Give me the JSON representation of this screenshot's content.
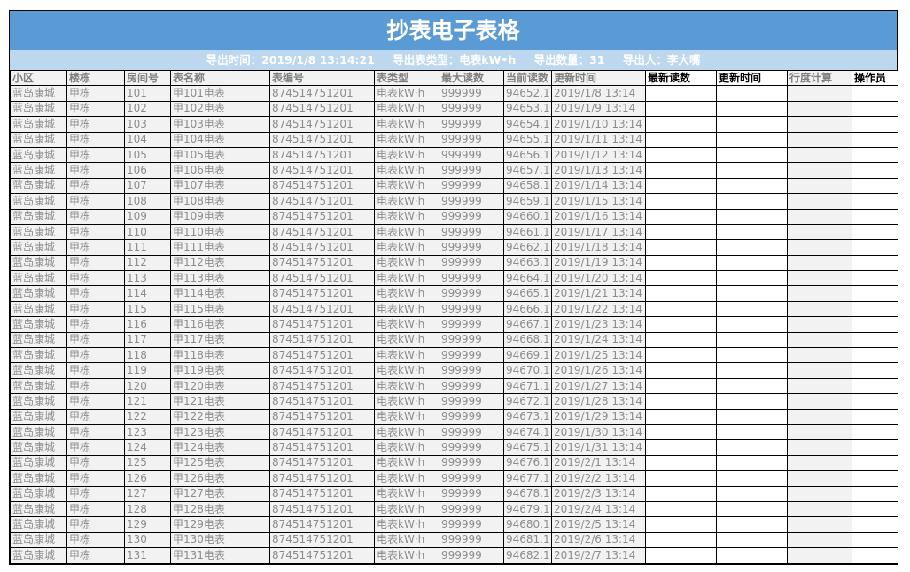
{
  "title": "抄表电子表格",
  "export_info": {
    "time": "导出时间：2019/1/8 13:14:21",
    "type": "导出表类型：电表kW•h",
    "count": "导出数量：31",
    "person": "导出人：李大嘴"
  },
  "columns": [
    "小区",
    "楼栋",
    "房间号",
    "表名称",
    "表编号",
    "表类型",
    "最大读数",
    "当前读数",
    "更新时间",
    "最新读数",
    "更新时间",
    "行度计算",
    "操作员"
  ],
  "rows": [
    [
      "蓝岛康城",
      "甲栋",
      "101",
      "甲101电表",
      "874514751201",
      "电表kW·h",
      "999999",
      "94652.1",
      "2019/1/8 13:14"
    ],
    [
      "蓝岛康城",
      "甲栋",
      "102",
      "甲102电表",
      "874514751201",
      "电表kW·h",
      "999999",
      "94653.1",
      "2019/1/9 13:14"
    ],
    [
      "蓝岛康城",
      "甲栋",
      "103",
      "甲103电表",
      "874514751201",
      "电表kW·h",
      "999999",
      "94654.1",
      "2019/1/10 13:14"
    ],
    [
      "蓝岛康城",
      "甲栋",
      "104",
      "甲104电表",
      "874514751201",
      "电表kW·h",
      "999999",
      "94655.1",
      "2019/1/11 13:14"
    ],
    [
      "蓝岛康城",
      "甲栋",
      "105",
      "甲105电表",
      "874514751201",
      "电表kW·h",
      "999999",
      "94656.1",
      "2019/1/12 13:14"
    ],
    [
      "蓝岛康城",
      "甲栋",
      "106",
      "甲106电表",
      "874514751201",
      "电表kW·h",
      "999999",
      "94657.1",
      "2019/1/13 13:14"
    ],
    [
      "蓝岛康城",
      "甲栋",
      "107",
      "甲107电表",
      "874514751201",
      "电表kW·h",
      "999999",
      "94658.1",
      "2019/1/14 13:14"
    ],
    [
      "蓝岛康城",
      "甲栋",
      "108",
      "甲108电表",
      "874514751201",
      "电表kW·h",
      "999999",
      "94659.1",
      "2019/1/15 13:14"
    ],
    [
      "蓝岛康城",
      "甲栋",
      "109",
      "甲109电表",
      "874514751201",
      "电表kW·h",
      "999999",
      "94660.1",
      "2019/1/16 13:14"
    ],
    [
      "蓝岛康城",
      "甲栋",
      "110",
      "甲110电表",
      "874514751201",
      "电表kW·h",
      "999999",
      "94661.1",
      "2019/1/17 13:14"
    ],
    [
      "蓝岛康城",
      "甲栋",
      "111",
      "甲111电表",
      "874514751201",
      "电表kW·h",
      "999999",
      "94662.1",
      "2019/1/18 13:14"
    ],
    [
      "蓝岛康城",
      "甲栋",
      "112",
      "甲112电表",
      "874514751201",
      "电表kW·h",
      "999999",
      "94663.1",
      "2019/1/19 13:14"
    ],
    [
      "蓝岛康城",
      "甲栋",
      "113",
      "甲113电表",
      "874514751201",
      "电表kW·h",
      "999999",
      "94664.1",
      "2019/1/20 13:14"
    ],
    [
      "蓝岛康城",
      "甲栋",
      "114",
      "甲114电表",
      "874514751201",
      "电表kW·h",
      "999999",
      "94665.1",
      "2019/1/21 13:14"
    ],
    [
      "蓝岛康城",
      "甲栋",
      "115",
      "甲115电表",
      "874514751201",
      "电表kW·h",
      "999999",
      "94666.1",
      "2019/1/22 13:14"
    ],
    [
      "蓝岛康城",
      "甲栋",
      "116",
      "甲116电表",
      "874514751201",
      "电表kW·h",
      "999999",
      "94667.1",
      "2019/1/23 13:14"
    ],
    [
      "蓝岛康城",
      "甲栋",
      "117",
      "甲117电表",
      "874514751201",
      "电表kW·h",
      "999999",
      "94668.1",
      "2019/1/24 13:14"
    ],
    [
      "蓝岛康城",
      "甲栋",
      "118",
      "甲118电表",
      "874514751201",
      "电表kW·h",
      "999999",
      "94669.1",
      "2019/1/25 13:14"
    ],
    [
      "蓝岛康城",
      "甲栋",
      "119",
      "甲119电表",
      "874514751201",
      "电表kW·h",
      "999999",
      "94670.1",
      "2019/1/26 13:14"
    ],
    [
      "蓝岛康城",
      "甲栋",
      "120",
      "甲120电表",
      "874514751201",
      "电表kW·h",
      "999999",
      "94671.1",
      "2019/1/27 13:14"
    ],
    [
      "蓝岛康城",
      "甲栋",
      "121",
      "甲121电表",
      "874514751201",
      "电表kW·h",
      "999999",
      "94672.1",
      "2019/1/28 13:14"
    ],
    [
      "蓝岛康城",
      "甲栋",
      "122",
      "甲122电表",
      "874514751201",
      "电表kW·h",
      "999999",
      "94673.1",
      "2019/1/29 13:14"
    ],
    [
      "蓝岛康城",
      "甲栋",
      "123",
      "甲123电表",
      "874514751201",
      "电表kW·h",
      "999999",
      "94674.1",
      "2019/1/30 13:14"
    ],
    [
      "蓝岛康城",
      "甲栋",
      "124",
      "甲124电表",
      "874514751201",
      "电表kW·h",
      "999999",
      "94675.1",
      "2019/1/31 13:14"
    ],
    [
      "蓝岛康城",
      "甲栋",
      "125",
      "甲125电表",
      "874514751201",
      "电表kW·h",
      "999999",
      "94676.1",
      "2019/2/1 13:14"
    ],
    [
      "蓝岛康城",
      "甲栋",
      "126",
      "甲126电表",
      "874514751201",
      "电表kW·h",
      "999999",
      "94677.1",
      "2019/2/2 13:14"
    ],
    [
      "蓝岛康城",
      "甲栋",
      "127",
      "甲127电表",
      "874514751201",
      "电表kW·h",
      "999999",
      "94678.1",
      "2019/2/3 13:14"
    ],
    [
      "蓝岛康城",
      "甲栋",
      "128",
      "甲128电表",
      "874514751201",
      "电表kW·h",
      "999999",
      "94679.1",
      "2019/2/4 13:14"
    ],
    [
      "蓝岛康城",
      "甲栋",
      "129",
      "甲129电表",
      "874514751201",
      "电表kW·h",
      "999999",
      "94680.1",
      "2019/2/5 13:14"
    ],
    [
      "蓝岛康城",
      "甲栋",
      "130",
      "甲130电表",
      "874514751201",
      "电表kW·h",
      "999999",
      "94681.1",
      "2019/2/6 13:14"
    ],
    [
      "蓝岛康城",
      "甲栋",
      "131",
      "甲131电表",
      "874514751201",
      "电表kW·h",
      "999999",
      "94682.1",
      "2019/2/7 13:14"
    ]
  ],
  "colors": {
    "title_bg": "#5b9bd5",
    "subtitle_bg": "#bdd7ee",
    "cell_bg": "#f2f2f2"
  }
}
